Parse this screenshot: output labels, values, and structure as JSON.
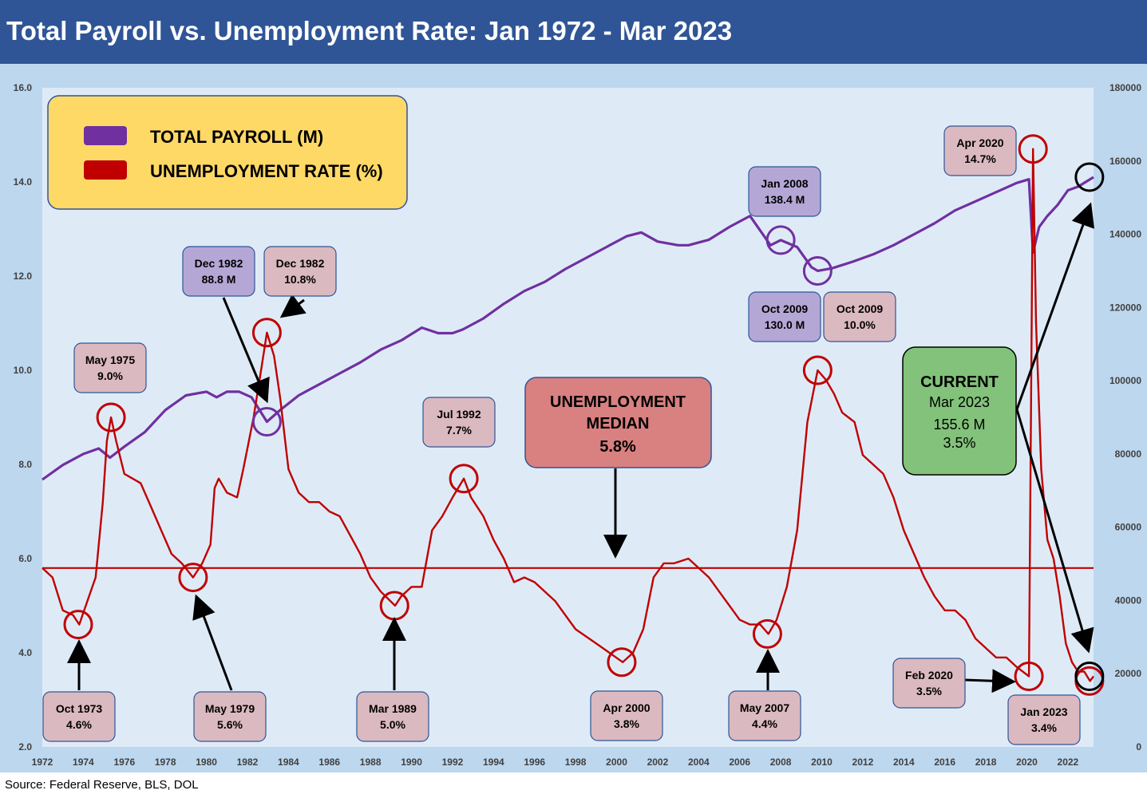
{
  "title": "Total Payroll vs. Unemployment Rate: Jan 1972 - Mar 2023",
  "source": "Source: Federal Reserve, BLS, DOL",
  "colors": {
    "payroll": "#7030a0",
    "unemployment": "#c00000",
    "background": "#bdd7ee",
    "plot_area": "#deebf7",
    "title_bar": "#2f5597",
    "legend_box": "#ffd966",
    "note_pink": "#dbb9c0",
    "note_purple": "#b4a7d6",
    "median_box": "#d98080",
    "current_box": "#82c27a"
  },
  "legend": {
    "payroll_label": "TOTAL PAYROLL (M)",
    "unemployment_label": "UNEMPLOYMENT RATE (%)"
  },
  "median_box": {
    "line1": "UNEMPLOYMENT",
    "line2": "MEDIAN",
    "line3": "5.8%"
  },
  "current_box": {
    "line1": "CURRENT",
    "line2": "Mar 2023",
    "line3": "155.6 M",
    "line4": "3.5%"
  },
  "annotations": [
    {
      "id": "oct-1973",
      "line1": "Oct 1973",
      "line2": "4.6%",
      "color": "pink"
    },
    {
      "id": "may-1975",
      "line1": "May 1975",
      "line2": "9.0%",
      "color": "pink"
    },
    {
      "id": "may-1979",
      "line1": "May 1979",
      "line2": "5.6%",
      "color": "pink"
    },
    {
      "id": "dec-1982-payroll",
      "line1": "Dec 1982",
      "line2": "88.8 M",
      "color": "purple"
    },
    {
      "id": "dec-1982-rate",
      "line1": "Dec 1982",
      "line2": "10.8%",
      "color": "pink"
    },
    {
      "id": "mar-1989",
      "line1": "Mar 1989",
      "line2": "5.0%",
      "color": "pink"
    },
    {
      "id": "jul-1992",
      "line1": "Jul 1992",
      "line2": "7.7%",
      "color": "pink"
    },
    {
      "id": "apr-2000",
      "line1": "Apr 2000",
      "line2": "3.8%",
      "color": "pink"
    },
    {
      "id": "may-2007",
      "line1": "May 2007",
      "line2": "4.4%",
      "color": "pink"
    },
    {
      "id": "jan-2008",
      "line1": "Jan 2008",
      "line2": "138.4 M",
      "color": "purple"
    },
    {
      "id": "oct-2009-payroll",
      "line1": "Oct 2009",
      "line2": "130.0 M",
      "color": "purple"
    },
    {
      "id": "oct-2009-rate",
      "line1": "Oct 2009",
      "line2": "10.0%",
      "color": "pink"
    },
    {
      "id": "feb-2020",
      "line1": "Feb 2020",
      "line2": "3.5%",
      "color": "pink"
    },
    {
      "id": "apr-2020",
      "line1": "Apr 2020",
      "line2": "14.7%",
      "color": "pink"
    },
    {
      "id": "jan-2023",
      "line1": "Jan 2023",
      "line2": "3.4%",
      "color": "pink"
    }
  ],
  "chart_data": {
    "type": "line",
    "title": "Total Payroll vs. Unemployment Rate: Jan 1972 - Mar 2023",
    "x_range": [
      1972,
      2023.25
    ],
    "x_ticks": [
      "1972",
      "1974",
      "1976",
      "1978",
      "1980",
      "1982",
      "1984",
      "1986",
      "1988",
      "1990",
      "1992",
      "1994",
      "1996",
      "1998",
      "2000",
      "2002",
      "2004",
      "2006",
      "2008",
      "2010",
      "2012",
      "2014",
      "2016",
      "2018",
      "2020",
      "2022"
    ],
    "y_left": {
      "range": [
        2.0,
        16.0
      ],
      "ticks": [
        "2.0",
        "4.0",
        "6.0",
        "8.0",
        "10.0",
        "12.0",
        "14.0",
        "16.0"
      ]
    },
    "y_right": {
      "range": [
        0,
        180000
      ],
      "ticks": [
        "0",
        "20000",
        "40000",
        "60000",
        "80000",
        "100000",
        "120000",
        "140000",
        "160000",
        "180000"
      ]
    },
    "median_unemployment": 5.8,
    "grid": false,
    "legend_position": "top-left",
    "series": [
      {
        "name": "TOTAL PAYROLL (M)",
        "axis": "right",
        "x": [
          1972.0,
          1973.0,
          1974.0,
          1974.75,
          1975.3,
          1976.0,
          1977.0,
          1978.0,
          1979.0,
          1980.0,
          1980.5,
          1981.0,
          1981.6,
          1982.2,
          1982.95,
          1983.6,
          1984.5,
          1985.5,
          1986.5,
          1987.5,
          1988.5,
          1989.5,
          1990.5,
          1991.3,
          1992.0,
          1992.5,
          1993.5,
          1994.5,
          1995.5,
          1996.5,
          1997.5,
          1998.5,
          1999.5,
          2000.5,
          2001.2,
          2002.0,
          2003.0,
          2003.5,
          2004.5,
          2005.5,
          2006.5,
          2007.5,
          2008.0,
          2008.8,
          2009.5,
          2009.8,
          2010.5,
          2011.5,
          2012.5,
          2013.5,
          2014.5,
          2015.5,
          2016.5,
          2017.5,
          2018.5,
          2019.5,
          2020.1,
          2020.3,
          2020.6,
          2021.0,
          2021.5,
          2022.0,
          2022.5,
          2023.25
        ],
        "y": [
          73000,
          77000,
          80000,
          81500,
          79000,
          82000,
          86000,
          92000,
          96000,
          97000,
          95500,
          97000,
          97000,
          95500,
          88800,
          92000,
          96000,
          99000,
          102000,
          105000,
          108500,
          111000,
          114500,
          113000,
          113000,
          114000,
          117000,
          121000,
          124500,
          127000,
          130500,
          133500,
          136500,
          139500,
          140500,
          138000,
          137000,
          137000,
          138500,
          142000,
          145000,
          137000,
          138400,
          136500,
          131000,
          130000,
          130700,
          132500,
          134500,
          137000,
          140000,
          143000,
          146500,
          149000,
          151500,
          154000,
          155000,
          135000,
          142000,
          145000,
          148000,
          152000,
          153000,
          155600
        ]
      },
      {
        "name": "UNEMPLOYMENT RATE (%)",
        "axis": "left",
        "x": [
          1972.0,
          1972.5,
          1973.0,
          1973.5,
          1973.8,
          1974.2,
          1974.6,
          1974.95,
          1975.15,
          1975.35,
          1975.6,
          1976.0,
          1976.4,
          1976.8,
          1977.3,
          1977.8,
          1978.3,
          1978.8,
          1979.35,
          1979.8,
          1980.2,
          1980.4,
          1980.6,
          1981.0,
          1981.5,
          1981.8,
          1982.3,
          1982.7,
          1982.95,
          1983.3,
          1983.6,
          1984.0,
          1984.5,
          1985.0,
          1985.5,
          1986.0,
          1986.5,
          1987.0,
          1987.5,
          1988.0,
          1988.5,
          1989.2,
          1989.5,
          1990.0,
          1990.5,
          1991.0,
          1991.5,
          1992.0,
          1992.55,
          1992.9,
          1993.5,
          1994.0,
          1994.5,
          1995.0,
          1995.5,
          1996.0,
          1997.0,
          1998.0,
          1999.0,
          2000.3,
          2000.8,
          2001.3,
          2001.8,
          2002.3,
          2002.8,
          2003.5,
          2004.0,
          2004.5,
          2005.0,
          2005.5,
          2006.0,
          2006.5,
          2007.0,
          2007.4,
          2007.8,
          2008.3,
          2008.8,
          2009.3,
          2009.8,
          2010.2,
          2010.6,
          2011.0,
          2011.3,
          2011.6,
          2012.0,
          2012.5,
          2013.0,
          2013.5,
          2014.0,
          2014.5,
          2015.0,
          2015.5,
          2016.0,
          2016.5,
          2017.0,
          2017.5,
          2018.0,
          2018.5,
          2019.0,
          2019.5,
          2020.1,
          2020.3,
          2020.45,
          2020.7,
          2021.0,
          2021.3,
          2021.6,
          2021.9,
          2022.2,
          2022.5,
          2022.8,
          2023.08,
          2023.25
        ],
        "y": [
          5.8,
          5.6,
          4.9,
          4.8,
          4.6,
          5.1,
          5.6,
          7.2,
          8.5,
          9.0,
          8.5,
          7.8,
          7.7,
          7.6,
          7.1,
          6.6,
          6.1,
          5.9,
          5.6,
          5.9,
          6.3,
          7.5,
          7.7,
          7.4,
          7.3,
          7.9,
          9.0,
          10.1,
          10.8,
          10.3,
          9.4,
          7.9,
          7.4,
          7.2,
          7.2,
          7.0,
          6.9,
          6.5,
          6.1,
          5.6,
          5.3,
          5.0,
          5.2,
          5.4,
          5.4,
          6.6,
          6.9,
          7.3,
          7.7,
          7.3,
          6.9,
          6.4,
          6.0,
          5.5,
          5.6,
          5.5,
          5.1,
          4.5,
          4.2,
          3.8,
          4.0,
          4.5,
          5.6,
          5.9,
          5.9,
          6.0,
          5.8,
          5.6,
          5.3,
          5.0,
          4.7,
          4.6,
          4.6,
          4.4,
          4.7,
          5.4,
          6.6,
          8.9,
          10.0,
          9.8,
          9.5,
          9.1,
          9.0,
          8.9,
          8.2,
          8.0,
          7.8,
          7.3,
          6.6,
          6.1,
          5.6,
          5.2,
          4.9,
          4.9,
          4.7,
          4.3,
          4.1,
          3.9,
          3.9,
          3.7,
          3.5,
          14.7,
          11.0,
          7.9,
          6.4,
          6.0,
          5.2,
          4.2,
          3.8,
          3.6,
          3.6,
          3.4,
          3.5
        ]
      }
    ]
  }
}
